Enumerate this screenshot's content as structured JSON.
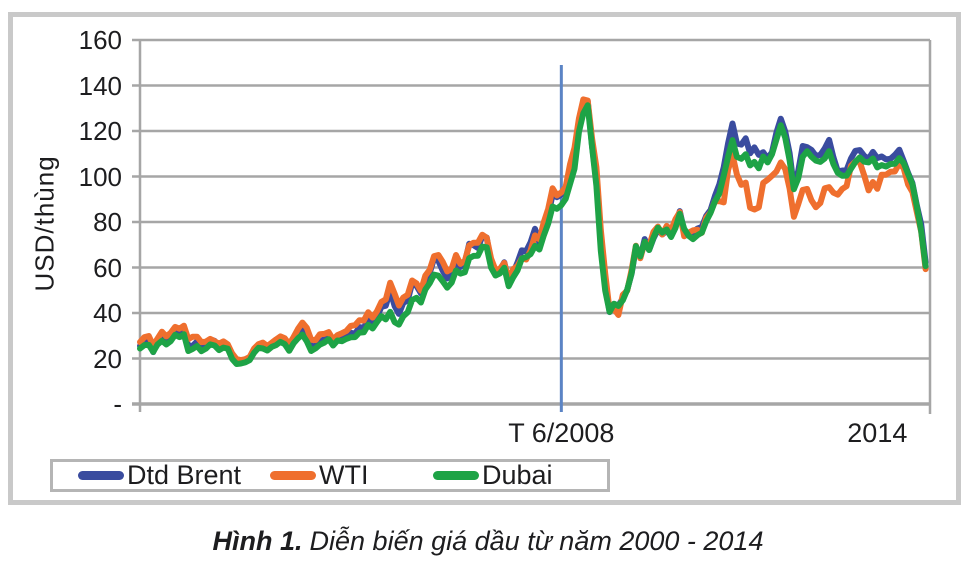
{
  "figure": {
    "caption_label": "Hình 1.",
    "caption_text": "Diễn biến giá dầu từ năm 2000 - 2014"
  },
  "chart_data": {
    "type": "line",
    "title": "",
    "xlabel": "",
    "ylabel": "USD/thùng",
    "x_unit": "monthly, Jan 2000 - Dec 2014 (x value = year)",
    "xlim": [
      2000,
      2015
    ],
    "ylim": [
      0,
      160
    ],
    "grid": true,
    "legend_position": "bottom-left",
    "y_ticks": [
      {
        "value": 160,
        "label": "160"
      },
      {
        "value": 140,
        "label": "140"
      },
      {
        "value": 120,
        "label": "120"
      },
      {
        "value": 100,
        "label": "100"
      },
      {
        "value": 80,
        "label": "80"
      },
      {
        "value": 60,
        "label": "60"
      },
      {
        "value": 40,
        "label": "40"
      },
      {
        "value": 20,
        "label": "20"
      },
      {
        "value": 0,
        "label": "-"
      }
    ],
    "x_ticks": [
      {
        "value": 2008,
        "label": "T 6/2008"
      },
      {
        "value": 2014,
        "label": "2014"
      }
    ],
    "marker_line": {
      "label": "T 6/2008",
      "x_value": 2008,
      "y_top_value": 149
    },
    "colors": {
      "grid": "#a6a6a6",
      "frame": "#c9c9c9",
      "marker": "#5b84c5",
      "legend_border": "#b5b5b5",
      "text": "#1d1d1f"
    },
    "series": [
      {
        "name": "Dtd Brent",
        "color": "#3a4c9f",
        "values": [
          25.5,
          27.8,
          27.5,
          22.8,
          27.7,
          29.8,
          28.4,
          30.0,
          32.1,
          30.9,
          32.5,
          25.5,
          25.6,
          27.5,
          24.5,
          25.6,
          28.4,
          27.8,
          24.5,
          25.7,
          25.6,
          20.5,
          18.8,
          18.7,
          19.4,
          20.3,
          23.7,
          26.0,
          25.3,
          24.1,
          25.8,
          26.6,
          28.4,
          27.5,
          24.3,
          28.3,
          31.3,
          32.7,
          30.4,
          24.9,
          25.8,
          27.6,
          28.4,
          29.8,
          27.1,
          29.6,
          28.8,
          29.8,
          31.3,
          30.9,
          33.8,
          33.4,
          37.6,
          35.1,
          38.3,
          42.7,
          43.2,
          49.8,
          43.1,
          39.6,
          44.5,
          45.5,
          53.1,
          51.9,
          48.6,
          54.4,
          57.5,
          64.1,
          62.9,
          58.5,
          55.2,
          56.9,
          63.1,
          60.2,
          62.1,
          70.4,
          69.8,
          68.6,
          73.7,
          73.2,
          61.7,
          57.8,
          58.9,
          62.3,
          53.7,
          57.6,
          62.1,
          67.5,
          67.2,
          71.1,
          77.0,
          70.8,
          77.2,
          82.3,
          92.4,
          90.9,
          92.0,
          95.0,
          103.7,
          109.1,
          122.8,
          132.3,
          133.2,
          113.2,
          97.9,
          71.9,
          52.5,
          40.4,
          43.4,
          43.3,
          46.5,
          50.2,
          57.3,
          68.6,
          64.4,
          72.5,
          67.7,
          72.8,
          76.7,
          74.5,
          76.2,
          73.7,
          78.8,
          84.8,
          75.9,
          74.8,
          75.6,
          77.1,
          77.8,
          82.7,
          85.3,
          91.4,
          96.5,
          104.0,
          114.6,
          123.3,
          114.5,
          114.0,
          116.8,
          110.2,
          112.8,
          109.5,
          110.7,
          107.9,
          110.7,
          119.3,
          125.4,
          119.8,
          110.3,
          95.2,
          102.6,
          113.4,
          112.9,
          111.7,
          109.1,
          109.5,
          112.3,
          116.1,
          108.5,
          102.3,
          102.6,
          102.9,
          107.9,
          111.3,
          111.6,
          109.1,
          107.8,
          110.8,
          108.1,
          108.8,
          107.5,
          107.8,
          109.5,
          111.8,
          106.8,
          101.6,
          97.1,
          87.4,
          79.0,
          62.3
        ]
      },
      {
        "name": "WTI",
        "color": "#ef6f2e",
        "values": [
          27.2,
          29.4,
          29.9,
          25.7,
          28.8,
          31.8,
          29.7,
          31.3,
          33.9,
          33.1,
          34.4,
          28.5,
          29.6,
          29.6,
          27.2,
          27.4,
          28.6,
          27.6,
          26.5,
          27.5,
          26.2,
          22.2,
          19.7,
          19.3,
          19.7,
          20.7,
          24.4,
          26.3,
          27.0,
          25.5,
          26.9,
          28.4,
          29.7,
          28.9,
          26.3,
          29.4,
          33.0,
          35.8,
          33.5,
          28.2,
          28.1,
          30.7,
          30.8,
          31.6,
          28.3,
          30.3,
          31.1,
          32.1,
          34.3,
          34.7,
          36.8,
          36.7,
          40.3,
          38.0,
          40.8,
          44.9,
          46.0,
          53.3,
          48.5,
          43.3,
          46.8,
          48.0,
          54.3,
          53.0,
          49.8,
          56.4,
          59.0,
          65.0,
          65.5,
          62.4,
          58.3,
          59.4,
          65.5,
          61.6,
          62.9,
          69.7,
          70.9,
          70.9,
          74.4,
          73.1,
          63.9,
          58.9,
          59.4,
          62.0,
          54.5,
          59.3,
          60.6,
          64.0,
          63.5,
          67.5,
          74.1,
          72.4,
          79.9,
          85.8,
          94.8,
          91.7,
          93.0,
          95.4,
          105.5,
          112.6,
          125.4,
          133.9,
          133.4,
          116.6,
          104.1,
          76.6,
          57.3,
          41.1,
          41.7,
          39.1,
          48.0,
          49.8,
          59.0,
          69.6,
          64.1,
          71.0,
          69.4,
          75.7,
          78.0,
          74.5,
          78.3,
          76.4,
          81.2,
          84.4,
          73.7,
          75.3,
          76.3,
          76.6,
          75.2,
          81.9,
          84.2,
          89.1,
          89.2,
          88.6,
          102.9,
          109.5,
          100.9,
          96.3,
          97.3,
          86.3,
          85.5,
          86.4,
          97.2,
          98.6,
          100.3,
          102.2,
          106.2,
          103.3,
          94.7,
          82.3,
          87.9,
          94.1,
          94.5,
          89.5,
          86.5,
          88.3,
          94.8,
          95.3,
          92.9,
          92.0,
          94.5,
          95.8,
          104.7,
          106.6,
          106.3,
          100.5,
          93.9,
          97.6,
          94.6,
          100.8,
          100.8,
          102.1,
          102.2,
          105.8,
          103.6,
          96.5,
          93.2,
          84.4,
          75.8,
          59.3
        ]
      },
      {
        "name": "Dubai",
        "color": "#1ea346",
        "values": [
          24.4,
          25.9,
          26.0,
          22.9,
          26.2,
          27.8,
          26.2,
          27.6,
          30.4,
          29.4,
          30.7,
          23.3,
          24.2,
          25.5,
          23.2,
          24.3,
          26.2,
          25.7,
          23.7,
          24.8,
          24.3,
          19.8,
          17.6,
          17.8,
          18.3,
          19.3,
          22.5,
          24.7,
          24.4,
          23.5,
          25.1,
          25.9,
          27.3,
          26.3,
          23.4,
          26.7,
          28.9,
          30.5,
          27.5,
          23.3,
          24.5,
          26.1,
          27.0,
          28.5,
          25.7,
          27.9,
          27.6,
          28.6,
          29.3,
          29.4,
          31.4,
          31.5,
          34.8,
          33.2,
          36.0,
          38.6,
          37.2,
          40.5,
          36.0,
          34.9,
          38.6,
          40.3,
          45.7,
          46.7,
          44.6,
          50.3,
          53.1,
          56.9,
          56.4,
          53.9,
          51.1,
          53.3,
          58.7,
          57.3,
          57.9,
          64.1,
          65.1,
          65.2,
          69.2,
          68.9,
          59.9,
          56.5,
          57.4,
          59.9,
          51.8,
          55.6,
          58.6,
          63.9,
          64.6,
          65.9,
          69.5,
          67.9,
          74.1,
          79.3,
          86.8,
          85.8,
          87.4,
          90.2,
          96.8,
          103.4,
          119.5,
          127.8,
          131.3,
          112.9,
          95.9,
          67.4,
          49.9,
          40.5,
          44.1,
          43.1,
          45.6,
          50.2,
          57.5,
          69.4,
          64.9,
          71.3,
          67.7,
          73.2,
          77.5,
          75.4,
          76.7,
          73.4,
          77.3,
          83.6,
          77.0,
          74.0,
          72.5,
          74.2,
          75.3,
          80.3,
          84.1,
          89.0,
          92.5,
          100.3,
          108.7,
          116.0,
          108.6,
          107.8,
          109.8,
          104.9,
          106.4,
          103.6,
          108.8,
          106.2,
          109.8,
          116.2,
          122.5,
          117.1,
          107.1,
          94.4,
          99.3,
          108.7,
          111.1,
          108.7,
          107.0,
          106.4,
          107.9,
          111.1,
          105.5,
          101.6,
          100.3,
          100.4,
          103.4,
          106.4,
          108.4,
          106.5,
          106.2,
          107.9,
          104.0,
          105.0,
          104.4,
          105.5,
          105.6,
          108.1,
          105.9,
          101.1,
          96.6,
          86.8,
          76.0,
          60.6
        ]
      }
    ]
  }
}
